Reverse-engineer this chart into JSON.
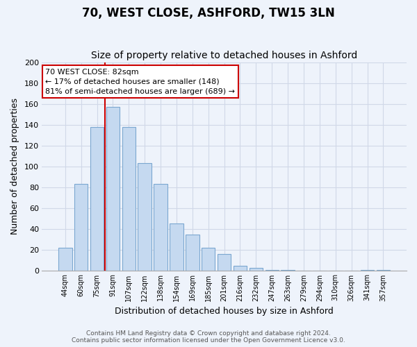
{
  "title": "70, WEST CLOSE, ASHFORD, TW15 3LN",
  "subtitle": "Size of property relative to detached houses in Ashford",
  "xlabel": "Distribution of detached houses by size in Ashford",
  "ylabel": "Number of detached properties",
  "bar_labels": [
    "44sqm",
    "60sqm",
    "75sqm",
    "91sqm",
    "107sqm",
    "122sqm",
    "138sqm",
    "154sqm",
    "169sqm",
    "185sqm",
    "201sqm",
    "216sqm",
    "232sqm",
    "247sqm",
    "263sqm",
    "279sqm",
    "294sqm",
    "310sqm",
    "326sqm",
    "341sqm",
    "357sqm"
  ],
  "bar_values": [
    22,
    83,
    138,
    157,
    138,
    103,
    83,
    45,
    35,
    22,
    16,
    5,
    3,
    1,
    1,
    0,
    0,
    0,
    0,
    1,
    1
  ],
  "bar_color": "#c5d9f0",
  "bar_edge_color": "#7ba7d0",
  "highlight_line_color": "#cc0000",
  "ylim": [
    0,
    200
  ],
  "yticks": [
    0,
    20,
    40,
    60,
    80,
    100,
    120,
    140,
    160,
    180,
    200
  ],
  "annotation_line1": "70 WEST CLOSE: 82sqm",
  "annotation_line2": "← 17% of detached houses are smaller (148)",
  "annotation_line3": "81% of semi-detached houses are larger (689) →",
  "annotation_box_color": "#ffffff",
  "annotation_box_edge_color": "#cc0000",
  "footer_line1": "Contains HM Land Registry data © Crown copyright and database right 2024.",
  "footer_line2": "Contains public sector information licensed under the Open Government Licence v3.0.",
  "background_color": "#eef3fb",
  "grid_color": "#d0d8e8",
  "title_fontsize": 12,
  "subtitle_fontsize": 10
}
